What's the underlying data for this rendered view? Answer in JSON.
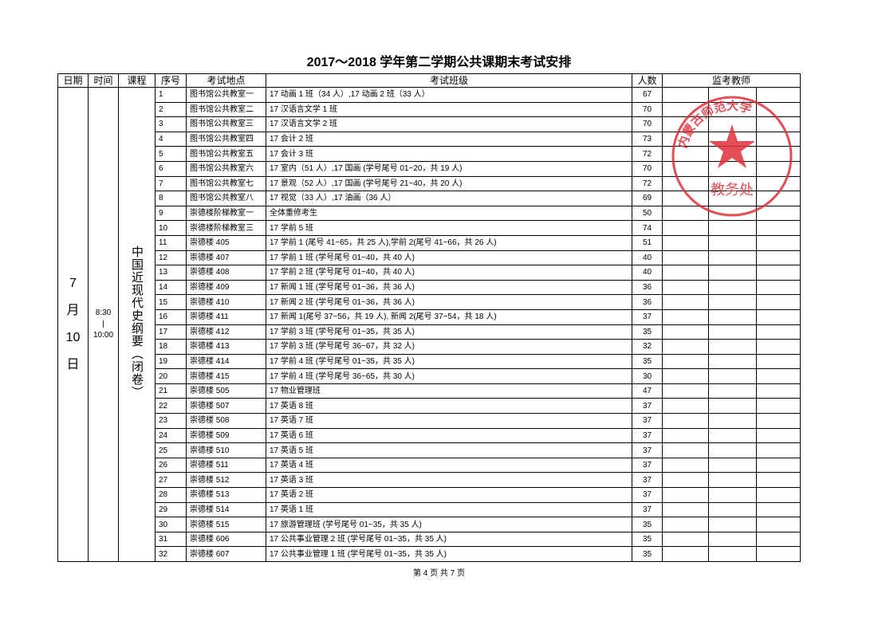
{
  "title": "2017～2018 学年第二学期公共课期末考试安排",
  "headers": [
    "日期",
    "时间",
    "课程",
    "序号",
    "考试地点",
    "考试班级",
    "人数",
    "监考教师"
  ],
  "date_lines": [
    "7",
    "月",
    "10",
    "日"
  ],
  "time_lines": [
    "8:30",
    "|",
    "10:00"
  ],
  "course": "中国近现代史纲要（闭卷）",
  "rows": [
    {
      "no": "1",
      "place": "图书馆公共教室一",
      "classes": "17 动画 1 班（34 人）,17 动画 2 班（33 人）",
      "count": "67"
    },
    {
      "no": "2",
      "place": "图书馆公共教室二",
      "classes": "17 汉语言文学 1 班",
      "count": "70"
    },
    {
      "no": "3",
      "place": "图书馆公共教室三",
      "classes": "17 汉语言文学 2 班",
      "count": "70"
    },
    {
      "no": "4",
      "place": "图书馆公共教室四",
      "classes": "17 会计 2 班",
      "count": "73"
    },
    {
      "no": "5",
      "place": "图书馆公共教室五",
      "classes": "17 会计 3 班",
      "count": "72"
    },
    {
      "no": "6",
      "place": "图书馆公共教室六",
      "classes": "17 室内（51 人）,17 国画 (学号尾号 01~20，共 19 人)",
      "count": "70"
    },
    {
      "no": "7",
      "place": "图书馆公共教室七",
      "classes": "17 景观（52 人）,17 国画 (学号尾号 21~40，共 20 人)",
      "count": "72"
    },
    {
      "no": "8",
      "place": "图书馆公共教室八",
      "classes": "17 视觉（33 人）,17 油画（36 人）",
      "count": "69"
    },
    {
      "no": "9",
      "place": "崇德楼阶梯教室一",
      "classes": "全体重修考生",
      "count": "50"
    },
    {
      "no": "10",
      "place": "崇德楼阶梯教室三",
      "classes": "17 学前 5 班",
      "count": "74"
    },
    {
      "no": "11",
      "place": "崇德楼 405",
      "classes": "17 学前 1 (尾号 41~65，共 25 人),学前 2(尾号 41~66，共 26 人)",
      "count": "51"
    },
    {
      "no": "12",
      "place": "崇德楼 407",
      "classes": "17 学前 1 班 (学号尾号 01~40，共 40 人)",
      "count": "40"
    },
    {
      "no": "13",
      "place": "崇德楼 408",
      "classes": "17 学前 2 班 (学号尾号 01~40，共 40 人)",
      "count": "40"
    },
    {
      "no": "14",
      "place": "崇德楼 409",
      "classes": "17 新闻 1 班 (学号尾号 01~36，共 36 人)",
      "count": "36"
    },
    {
      "no": "15",
      "place": "崇德楼 410",
      "classes": "17 新闻 2 班 (学号尾号 01~36，共 36 人)",
      "count": "36"
    },
    {
      "no": "16",
      "place": "崇德楼 411",
      "classes": "17 新闻 1(尾号 37~56，共 19 人), 新闻 2(尾号 37~54，共 18 人)",
      "count": "37"
    },
    {
      "no": "17",
      "place": "崇德楼 412",
      "classes": "17 学前 3 班 (学号尾号 01~35，共 35 人)",
      "count": "35"
    },
    {
      "no": "18",
      "place": "崇德楼 413",
      "classes": "17 学前 3 班 (学号尾号 36~67，共 32 人)",
      "count": "32"
    },
    {
      "no": "19",
      "place": "崇德楼 414",
      "classes": "17 学前 4 班 (学号尾号 01~35，共 35 人)",
      "count": "35"
    },
    {
      "no": "20",
      "place": "崇德楼 415",
      "classes": "17 学前 4 班 (学号尾号 36~65，共 30 人)",
      "count": "30"
    },
    {
      "no": "21",
      "place": "崇德楼 505",
      "classes": "17 物业管理班",
      "count": "47"
    },
    {
      "no": "22",
      "place": "崇德楼 507",
      "classes": "17 英语 8 班",
      "count": "37"
    },
    {
      "no": "23",
      "place": "崇德楼 508",
      "classes": "17 英语 7 班",
      "count": "37"
    },
    {
      "no": "24",
      "place": "崇德楼 509",
      "classes": "17 英语 6 班",
      "count": "37"
    },
    {
      "no": "25",
      "place": "崇德楼 510",
      "classes": "17 英语 5 班",
      "count": "37"
    },
    {
      "no": "26",
      "place": "崇德楼 511",
      "classes": "17 英语 4 班",
      "count": "37"
    },
    {
      "no": "27",
      "place": "崇德楼 512",
      "classes": "17 英语 3 班",
      "count": "37"
    },
    {
      "no": "28",
      "place": "崇德楼 513",
      "classes": "17 英语 2 班",
      "count": "37"
    },
    {
      "no": "29",
      "place": "崇德楼 514",
      "classes": "17 英语 1 班",
      "count": "37"
    },
    {
      "no": "30",
      "place": "崇德楼 515",
      "classes": "17 旅游管理班 (学号尾号 01~35，共 35 人)",
      "count": "35"
    },
    {
      "no": "31",
      "place": "崇德楼 606",
      "classes": "17 公共事业管理 2 班 (学号尾号 01~35，共 35 人)",
      "count": "35"
    },
    {
      "no": "32",
      "place": "崇德楼 607",
      "classes": "17 公共事业管理 1 班 (学号尾号 01~35，共 35 人)",
      "count": "35"
    }
  ],
  "footer": "第 4 页 共 7 页",
  "stamp": {
    "text": "内蒙古师范大学",
    "subtext": "教务处",
    "color": "#e0303a"
  }
}
